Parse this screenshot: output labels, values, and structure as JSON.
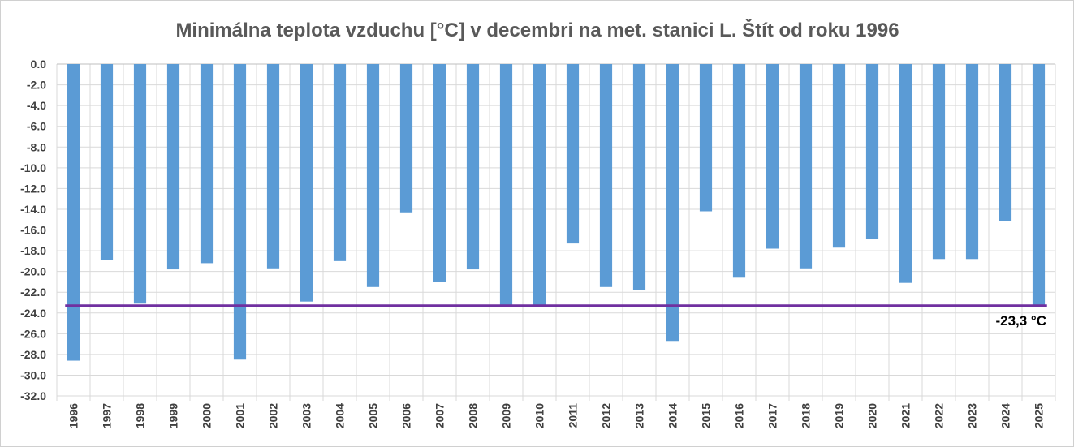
{
  "chart_data": {
    "type": "bar",
    "title": "Minimálna teplota vzduchu [°C] v decembri na met. stanici L. Štít od roku 1996",
    "xlabel": "",
    "ylabel": "",
    "categories": [
      "1996",
      "1997",
      "1998",
      "1999",
      "2000",
      "2001",
      "2002",
      "2003",
      "2004",
      "2005",
      "2006",
      "2007",
      "2008",
      "2009",
      "2010",
      "2011",
      "2012",
      "2013",
      "2014",
      "2015",
      "2016",
      "2017",
      "2018",
      "2019",
      "2020",
      "2021",
      "2022",
      "2023",
      "2024",
      "2025"
    ],
    "values": [
      -28.6,
      -18.9,
      -23.1,
      -19.8,
      -19.2,
      -28.5,
      -19.7,
      -22.9,
      -19.0,
      -21.5,
      -14.3,
      -21.0,
      -19.8,
      -23.3,
      -23.3,
      -17.3,
      -21.5,
      -21.8,
      -26.7,
      -14.2,
      -20.6,
      -17.8,
      -19.7,
      -17.7,
      -16.9,
      -21.1,
      -18.8,
      -18.8,
      -15.1,
      -23.3
    ],
    "ylim": [
      -32,
      0
    ],
    "yticks": [
      "0.0",
      "-2.0",
      "-4.0",
      "-6.0",
      "-8.0",
      "-10.0",
      "-12.0",
      "-14.0",
      "-16.0",
      "-18.0",
      "-20.0",
      "-22.0",
      "-24.0",
      "-26.0",
      "-28.0",
      "-30.0",
      "-32.0"
    ],
    "grid": true,
    "legend": "none",
    "bar_color": "#5b9bd5",
    "reference_line": {
      "value": -23.3,
      "label": "-23,3 °C",
      "color": "#7030a0"
    }
  }
}
